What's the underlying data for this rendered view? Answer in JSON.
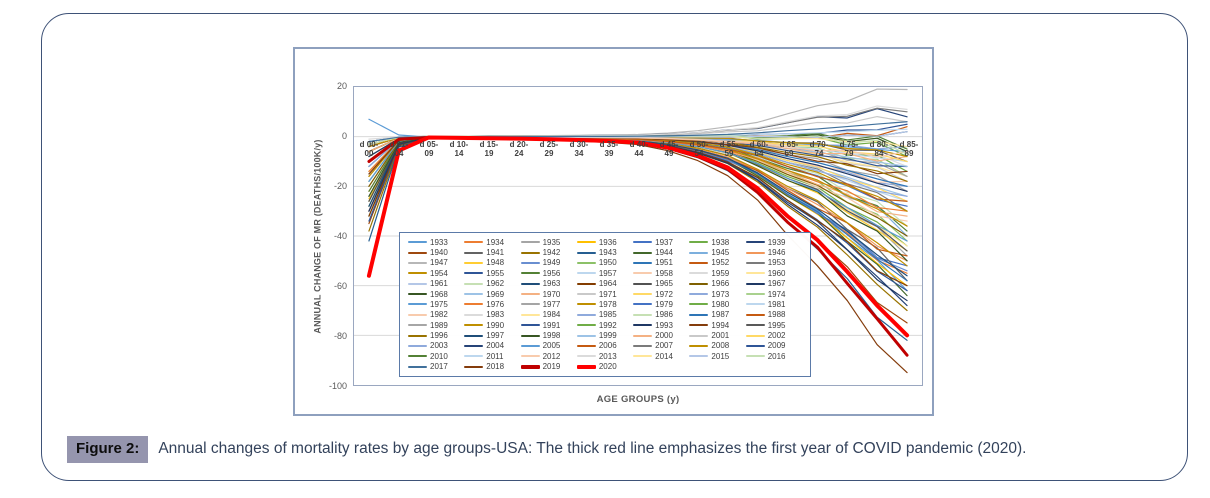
{
  "figure": {
    "label": "Figure 2:",
    "caption": "Annual changes of mortality rates by age groups-USA: The thick red line emphasizes the first year of COVID pandemic (2020)."
  },
  "colors": {
    "card_border": "#3E5277",
    "frame_border": "#8EA0BE",
    "plot_border": "#9AA7C0",
    "gridline": "#D9D9D9",
    "legend_border": "#5B7AA8",
    "tick_text": "#595959",
    "figure_chip_bg": "#9595AE",
    "highlight_red": "#FF0000"
  },
  "chart_data": {
    "type": "line",
    "title": "",
    "xlabel": "AGE GROUPS (y)",
    "ylabel": "ANNUAL CHANGE OF MR (DEATHS/100K/y)",
    "ylim": [
      -100,
      20
    ],
    "yticks": [
      20,
      0,
      -20,
      -40,
      -60,
      -80,
      -100
    ],
    "grid": true,
    "legend_position": "inside-bottom-left, 7 columns, years 1933-2020",
    "highlight": {
      "year": "2020",
      "color": "#FF0000",
      "style": "thick",
      "note": "first year of COVID pandemic; starts near -56 at age 00-00, ~0 through midlife, falls to ~-80 by 85-89"
    },
    "categories": [
      "d 00-00",
      "d 01-04",
      "d 05-09",
      "d 10-14",
      "d 15-19",
      "d 20-24",
      "d 25-29",
      "d 30-34",
      "d 35-39",
      "d 40-44",
      "d 45-49",
      "d 50-54",
      "d 55-59",
      "d 60-64",
      "d 65-69",
      "d 70-74",
      "d 75-79",
      "d 80-84",
      "d 85-89"
    ],
    "interpolation": {
      "note": "88 overlapping series; per-series values estimated as v[0]=start, v[1]=start*0.1, v[i>=2]=end*R[i]+kink*K[i]",
      "R": [
        0,
        0,
        0.004,
        0.006,
        0.008,
        0.01,
        0.013,
        0.017,
        0.022,
        0.03,
        0.055,
        0.095,
        0.155,
        0.26,
        0.4,
        0.52,
        0.68,
        0.85,
        1.0
      ],
      "K": [
        0,
        0,
        0.05,
        0.05,
        0.08,
        0.08,
        0.1,
        0.1,
        0.12,
        0.15,
        0.2,
        0.3,
        0.5,
        0.4,
        0.8,
        1.3,
        0.7,
        1.5,
        0
      ]
    },
    "series": [
      {
        "n": "1933",
        "c": "#5B9BD5",
        "v": [
          7,
          -62,
          2
        ]
      },
      {
        "n": "1934",
        "c": "#ED7D31",
        "v": [
          -10,
          -55,
          -2
        ]
      },
      {
        "n": "1935",
        "c": "#A5A5A5",
        "v": [
          -16,
          -48,
          3
        ]
      },
      {
        "n": "1936",
        "c": "#FFC000",
        "v": [
          -20,
          -60,
          0
        ]
      },
      {
        "n": "1937",
        "c": "#4472C4",
        "v": [
          -24,
          -52,
          -3
        ]
      },
      {
        "n": "1938",
        "c": "#70AD47",
        "v": [
          -18,
          -44,
          2
        ]
      },
      {
        "n": "1939",
        "c": "#264478",
        "v": [
          -30,
          -68,
          1
        ]
      },
      {
        "n": "1940",
        "c": "#9E480E",
        "v": [
          -35,
          -75,
          -2
        ]
      },
      {
        "n": "1941",
        "c": "#636363",
        "v": [
          -28,
          -58,
          3
        ]
      },
      {
        "n": "1942",
        "c": "#997300",
        "v": [
          -38,
          -70,
          0
        ]
      },
      {
        "n": "1943",
        "c": "#255E91",
        "v": [
          -42,
          -82,
          -2
        ]
      },
      {
        "n": "1944",
        "c": "#43682B",
        "v": [
          -32,
          -64,
          2
        ]
      },
      {
        "n": "1945",
        "c": "#7CAFDD",
        "v": [
          -26,
          -40,
          4
        ]
      },
      {
        "n": "1946",
        "c": "#F1975A",
        "v": [
          -22,
          -50,
          -1
        ]
      },
      {
        "n": "1947",
        "c": "#B7B7B7",
        "v": [
          -15,
          19,
          2
        ]
      },
      {
        "n": "1948",
        "c": "#FFCD33",
        "v": [
          -25,
          -46,
          1
        ]
      },
      {
        "n": "1949",
        "c": "#698ED0",
        "v": [
          -20,
          -54,
          -2
        ]
      },
      {
        "n": "1950",
        "c": "#8CC168",
        "v": [
          -28,
          -42,
          3
        ]
      },
      {
        "n": "1951",
        "c": "#2E75B6",
        "v": [
          -24,
          -58,
          0
        ]
      },
      {
        "n": "1952",
        "c": "#C55A11",
        "v": [
          -30,
          -48,
          -3
        ]
      },
      {
        "n": "1953",
        "c": "#7B7B7B",
        "v": [
          -18,
          -30,
          2
        ]
      },
      {
        "n": "1954",
        "c": "#BF8F00",
        "v": [
          -26,
          -52,
          1
        ]
      },
      {
        "n": "1955",
        "c": "#2F5597",
        "v": [
          -34,
          -62,
          -1
        ]
      },
      {
        "n": "1956",
        "c": "#538135",
        "v": [
          -22,
          -38,
          3
        ]
      },
      {
        "n": "1957",
        "c": "#BDD7EE",
        "v": [
          -16,
          -26,
          0
        ]
      },
      {
        "n": "1958",
        "c": "#F8CBAD",
        "v": [
          -20,
          -34,
          -2
        ]
      },
      {
        "n": "1959",
        "c": "#DBDBDB",
        "v": [
          -12,
          -22,
          2
        ]
      },
      {
        "n": "1960",
        "c": "#FFE699",
        "v": [
          -24,
          -44,
          1
        ]
      },
      {
        "n": "1961",
        "c": "#B4C7E7",
        "v": [
          -14,
          -28,
          -1
        ]
      },
      {
        "n": "1962",
        "c": "#C6E0B4",
        "v": [
          -18,
          -36,
          3
        ]
      },
      {
        "n": "1963",
        "c": "#1F4E79",
        "v": [
          -28,
          -56,
          0
        ]
      },
      {
        "n": "1964",
        "c": "#833C00",
        "v": [
          -32,
          -60,
          -2
        ]
      },
      {
        "n": "1965",
        "c": "#525252",
        "v": [
          -26,
          -46,
          2
        ]
      },
      {
        "n": "1966",
        "c": "#7F6000",
        "v": [
          -20,
          -40,
          1
        ]
      },
      {
        "n": "1967",
        "c": "#1F3864",
        "v": [
          -30,
          -66,
          -1
        ]
      },
      {
        "n": "1968",
        "c": "#375623",
        "v": [
          -24,
          -50,
          3
        ]
      },
      {
        "n": "1969",
        "c": "#9DC3E6",
        "v": [
          -12,
          -24,
          0
        ]
      },
      {
        "n": "1970",
        "c": "#F4B183",
        "v": [
          -16,
          -32,
          -2
        ]
      },
      {
        "n": "1971",
        "c": "#C9C9C9",
        "v": [
          -8,
          -18,
          2
        ]
      },
      {
        "n": "1972",
        "c": "#FFD966",
        "v": [
          -14,
          -26,
          1
        ]
      },
      {
        "n": "1973",
        "c": "#8FAADC",
        "v": [
          -10,
          -20,
          -1
        ]
      },
      {
        "n": "1974",
        "c": "#A9D18E",
        "v": [
          -12,
          -16,
          3
        ]
      },
      {
        "n": "1975",
        "c": "#5B9BD5",
        "v": [
          -18,
          -42,
          0
        ]
      },
      {
        "n": "1976",
        "c": "#ED7D31",
        "v": [
          -14,
          -30,
          -2
        ]
      },
      {
        "n": "1977",
        "c": "#A5A5A5",
        "v": [
          -10,
          -22,
          2
        ]
      },
      {
        "n": "1978",
        "c": "#BF8F00",
        "v": [
          -16,
          -36,
          1
        ]
      },
      {
        "n": "1979",
        "c": "#4472C4",
        "v": [
          -12,
          -28,
          -1
        ]
      },
      {
        "n": "1980",
        "c": "#70AD47",
        "v": [
          -8,
          -14,
          3
        ]
      },
      {
        "n": "1981",
        "c": "#BDD7EE",
        "v": [
          -6,
          -10,
          0
        ]
      },
      {
        "n": "1982",
        "c": "#F8CBAD",
        "v": [
          -10,
          -18,
          -2
        ]
      },
      {
        "n": "1983",
        "c": "#DBDBDB",
        "v": [
          -8,
          -12,
          2
        ]
      },
      {
        "n": "1984",
        "c": "#FFE699",
        "v": [
          -6,
          -16,
          1
        ]
      },
      {
        "n": "1985",
        "c": "#8FAADC",
        "v": [
          -12,
          -24,
          -1
        ]
      },
      {
        "n": "1986",
        "c": "#C6E0B4",
        "v": [
          -8,
          -6,
          3
        ]
      },
      {
        "n": "1987",
        "c": "#2E75B6",
        "v": [
          -10,
          -20,
          0
        ]
      },
      {
        "n": "1988",
        "c": "#C55A11",
        "v": [
          -6,
          -26,
          -2
        ]
      },
      {
        "n": "1989",
        "c": "#A6A6A6",
        "v": [
          -8,
          -16,
          2
        ]
      },
      {
        "n": "1990",
        "c": "#BF8F00",
        "v": [
          -10,
          -30,
          1
        ]
      },
      {
        "n": "1991",
        "c": "#2F5597",
        "v": [
          -6,
          -12,
          -1
        ]
      },
      {
        "n": "1992",
        "c": "#70AD47",
        "v": [
          -4,
          -8,
          3
        ]
      },
      {
        "n": "1993",
        "c": "#1F3864",
        "v": [
          -8,
          -22,
          0
        ]
      },
      {
        "n": "1994",
        "c": "#843C0C",
        "v": [
          -6,
          -14,
          -2
        ]
      },
      {
        "n": "1995",
        "c": "#595959",
        "v": [
          -4,
          -10,
          2
        ]
      },
      {
        "n": "1996",
        "c": "#997300",
        "v": [
          -6,
          -18,
          1
        ]
      },
      {
        "n": "1997",
        "c": "#1F4E79",
        "v": [
          -4,
          2,
          -1
        ]
      },
      {
        "n": "1998",
        "c": "#375623",
        "v": [
          -2,
          -6,
          3
        ]
      },
      {
        "n": "1999",
        "c": "#9DC3E6",
        "v": [
          -4,
          -12,
          0
        ]
      },
      {
        "n": "2000",
        "c": "#F4B183",
        "v": [
          -6,
          -8,
          -2
        ]
      },
      {
        "n": "2001",
        "c": "#C9C9C9",
        "v": [
          -2,
          6,
          2
        ]
      },
      {
        "n": "2002",
        "c": "#FFD966",
        "v": [
          -4,
          -10,
          1
        ]
      },
      {
        "n": "2003",
        "c": "#8FAADC",
        "v": [
          -2,
          -4,
          -1
        ]
      },
      {
        "n": "2004",
        "c": "#264478",
        "v": [
          -4,
          8,
          3
        ]
      },
      {
        "n": "2005",
        "c": "#5B9BD5",
        "v": [
          -2,
          -6,
          0
        ]
      },
      {
        "n": "2006",
        "c": "#C55A11",
        "v": [
          -4,
          4,
          -2
        ]
      },
      {
        "n": "2007",
        "c": "#7B7B7B",
        "v": [
          -2,
          10,
          2
        ]
      },
      {
        "n": "2008",
        "c": "#BF8F00",
        "v": [
          -4,
          -8,
          1
        ]
      },
      {
        "n": "2009",
        "c": "#2F5597",
        "v": [
          -2,
          5,
          -1
        ]
      },
      {
        "n": "2010",
        "c": "#538135",
        "v": [
          -3,
          -5,
          3
        ]
      },
      {
        "n": "2011",
        "c": "#BDD7EE",
        "v": [
          -2,
          3,
          0
        ]
      },
      {
        "n": "2012",
        "c": "#F8CBAD",
        "v": [
          -3,
          -6,
          -2
        ]
      },
      {
        "n": "2013",
        "c": "#DBDBDB",
        "v": [
          -1,
          11,
          2
        ]
      },
      {
        "n": "2014",
        "c": "#FFE699",
        "v": [
          -3,
          -4,
          1
        ]
      },
      {
        "n": "2015",
        "c": "#B4C7E7",
        "v": [
          -2,
          2,
          -1
        ]
      },
      {
        "n": "2016",
        "c": "#C6E0B4",
        "v": [
          -3,
          -7,
          3
        ]
      },
      {
        "n": "2017",
        "c": "#41719C",
        "v": [
          -2,
          6,
          0
        ]
      },
      {
        "n": "2018",
        "c": "#843C0C",
        "v": [
          -15,
          -95,
          -2
        ]
      },
      {
        "n": "2019",
        "c": "#C00000",
        "v": [
          -10,
          -88,
          1
        ],
        "w": 3
      },
      {
        "n": "2020",
        "c": "#FF0000",
        "v": [
          -56,
          -80,
          0
        ],
        "w": 4
      }
    ]
  }
}
